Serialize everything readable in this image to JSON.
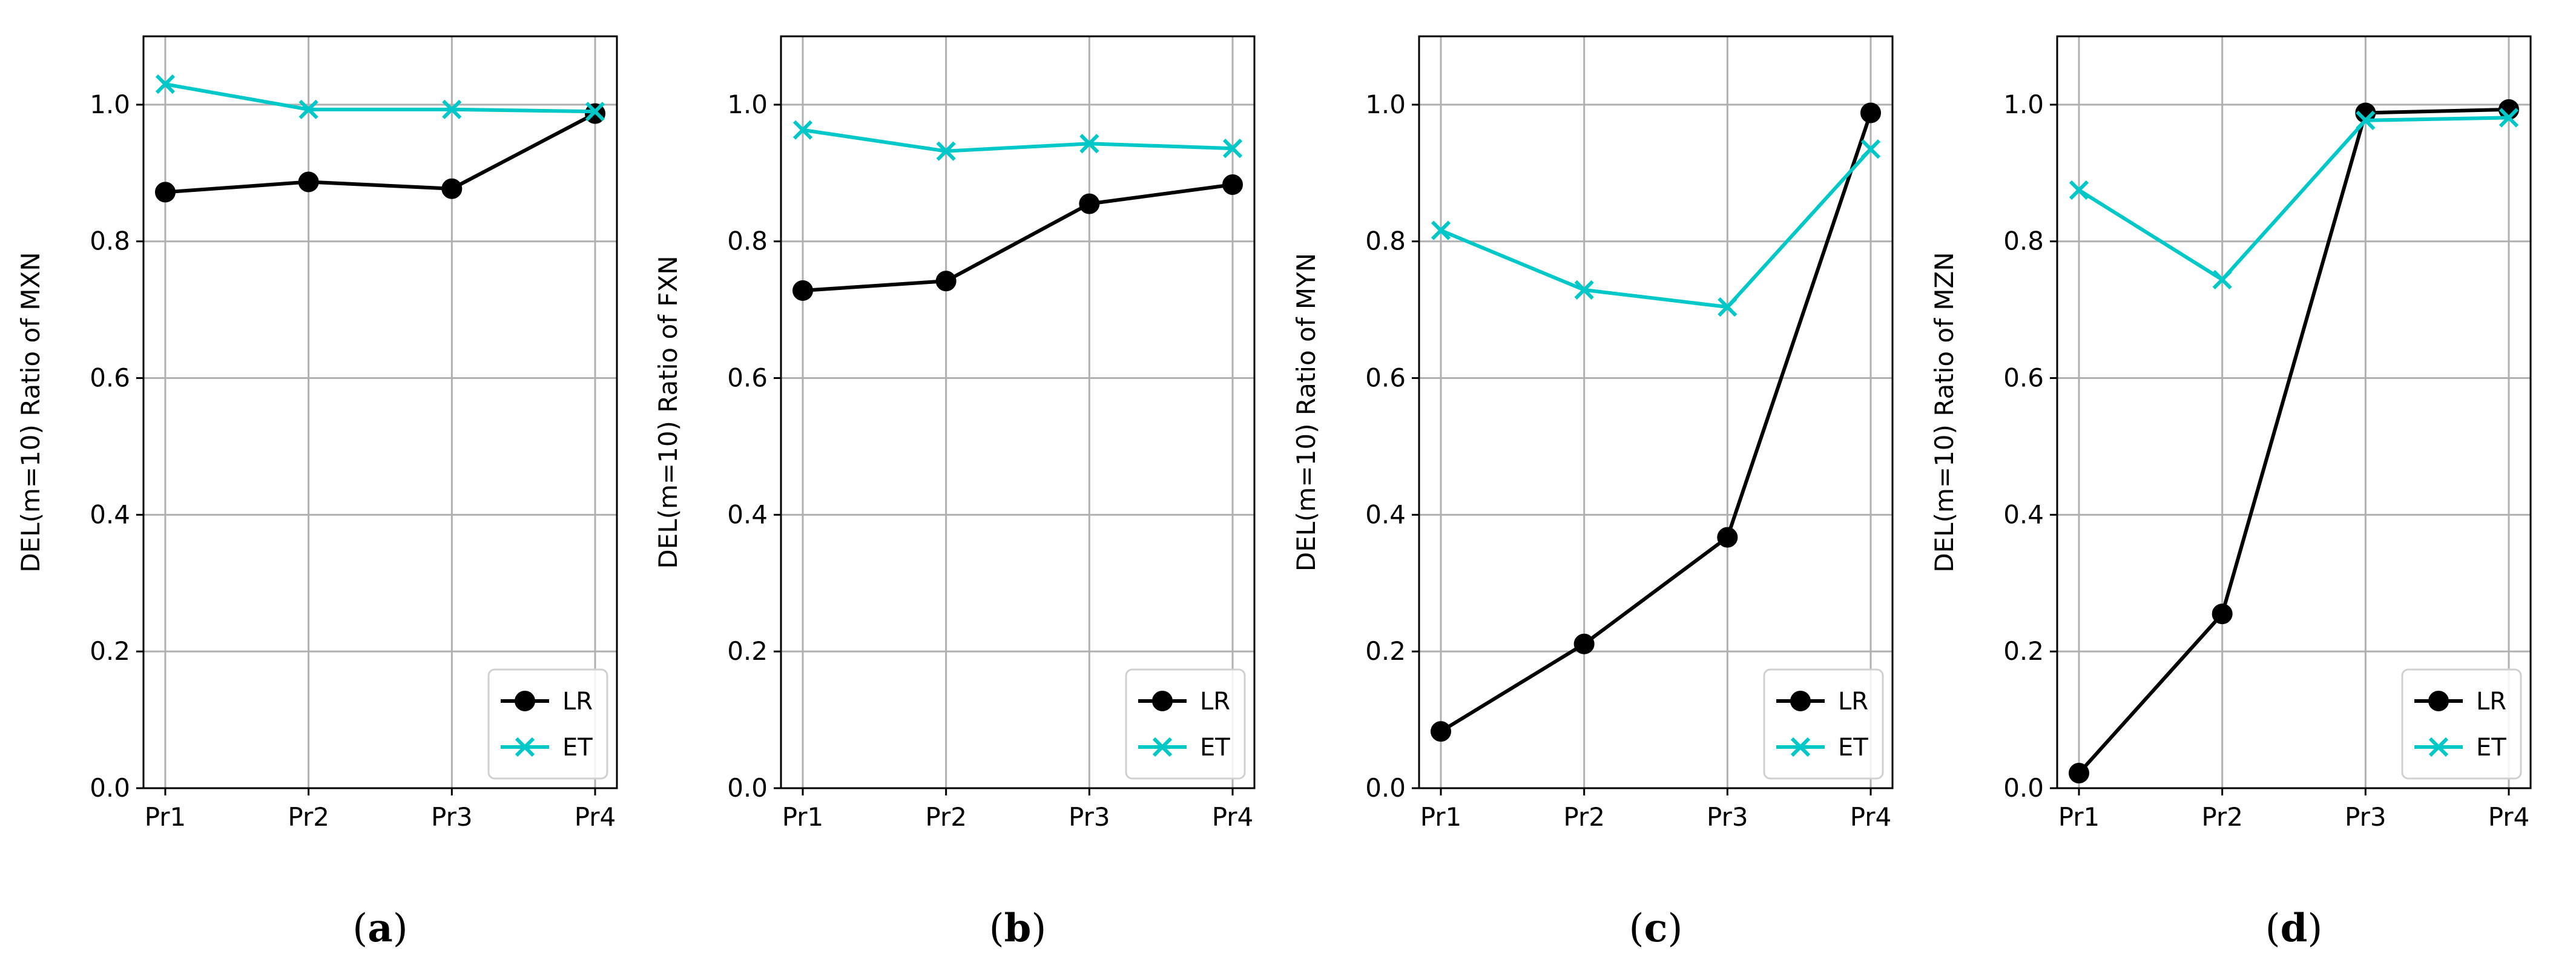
{
  "figure_title": "",
  "chart_data": [
    {
      "type": "line",
      "panel_label": "a",
      "title": "",
      "xlabel": "",
      "ylabel": "DEL(m=10) Ratio of MXN",
      "categories": [
        "Pr1",
        "Pr2",
        "Pr3",
        "Pr4"
      ],
      "ylim": [
        0,
        1.1
      ],
      "yticks": [
        "0.0",
        "0.2",
        "0.4",
        "0.6",
        "0.8",
        "1.0"
      ],
      "grid": true,
      "legend_position": "lower-right",
      "series": [
        {
          "name": "LR",
          "marker": "circle",
          "color": "#000000",
          "values": [
            0.872,
            0.887,
            0.877,
            0.987
          ]
        },
        {
          "name": "ET",
          "marker": "x",
          "color": "#00c8c8",
          "values": [
            1.03,
            0.993,
            0.993,
            0.99
          ]
        }
      ]
    },
    {
      "type": "line",
      "panel_label": "b",
      "title": "",
      "xlabel": "",
      "ylabel": "DEL(m=10) Ratio of FXN",
      "categories": [
        "Pr1",
        "Pr2",
        "Pr3",
        "Pr4"
      ],
      "ylim": [
        0,
        1.1
      ],
      "yticks": [
        "0.0",
        "0.2",
        "0.4",
        "0.6",
        "0.8",
        "1.0"
      ],
      "grid": true,
      "legend_position": "lower-right",
      "series": [
        {
          "name": "LR",
          "marker": "circle",
          "color": "#000000",
          "values": [
            0.728,
            0.742,
            0.855,
            0.883
          ]
        },
        {
          "name": "ET",
          "marker": "x",
          "color": "#00c8c8",
          "values": [
            0.963,
            0.932,
            0.943,
            0.936
          ]
        }
      ]
    },
    {
      "type": "line",
      "panel_label": "c",
      "title": "",
      "xlabel": "",
      "ylabel": "DEL(m=10) Ratio of MYN",
      "categories": [
        "Pr1",
        "Pr2",
        "Pr3",
        "Pr4"
      ],
      "ylim": [
        0,
        1.1
      ],
      "yticks": [
        "0.0",
        "0.2",
        "0.4",
        "0.6",
        "0.8",
        "1.0"
      ],
      "grid": true,
      "legend_position": "lower-right",
      "series": [
        {
          "name": "LR",
          "marker": "circle",
          "color": "#000000",
          "values": [
            0.083,
            0.211,
            0.367,
            0.988
          ]
        },
        {
          "name": "ET",
          "marker": "x",
          "color": "#00c8c8",
          "values": [
            0.816,
            0.729,
            0.704,
            0.935
          ]
        }
      ]
    },
    {
      "type": "line",
      "panel_label": "d",
      "title": "",
      "xlabel": "",
      "ylabel": "DEL(m=10) Ratio of MZN",
      "categories": [
        "Pr1",
        "Pr2",
        "Pr3",
        "Pr4"
      ],
      "ylim": [
        0,
        1.1
      ],
      "yticks": [
        "0.0",
        "0.2",
        "0.4",
        "0.6",
        "0.8",
        "1.0"
      ],
      "grid": true,
      "legend_position": "lower-right",
      "series": [
        {
          "name": "LR",
          "marker": "circle",
          "color": "#000000",
          "values": [
            0.022,
            0.255,
            0.988,
            0.993
          ]
        },
        {
          "name": "ET",
          "marker": "x",
          "color": "#00c8c8",
          "values": [
            0.875,
            0.744,
            0.977,
            0.981
          ]
        }
      ]
    }
  ]
}
